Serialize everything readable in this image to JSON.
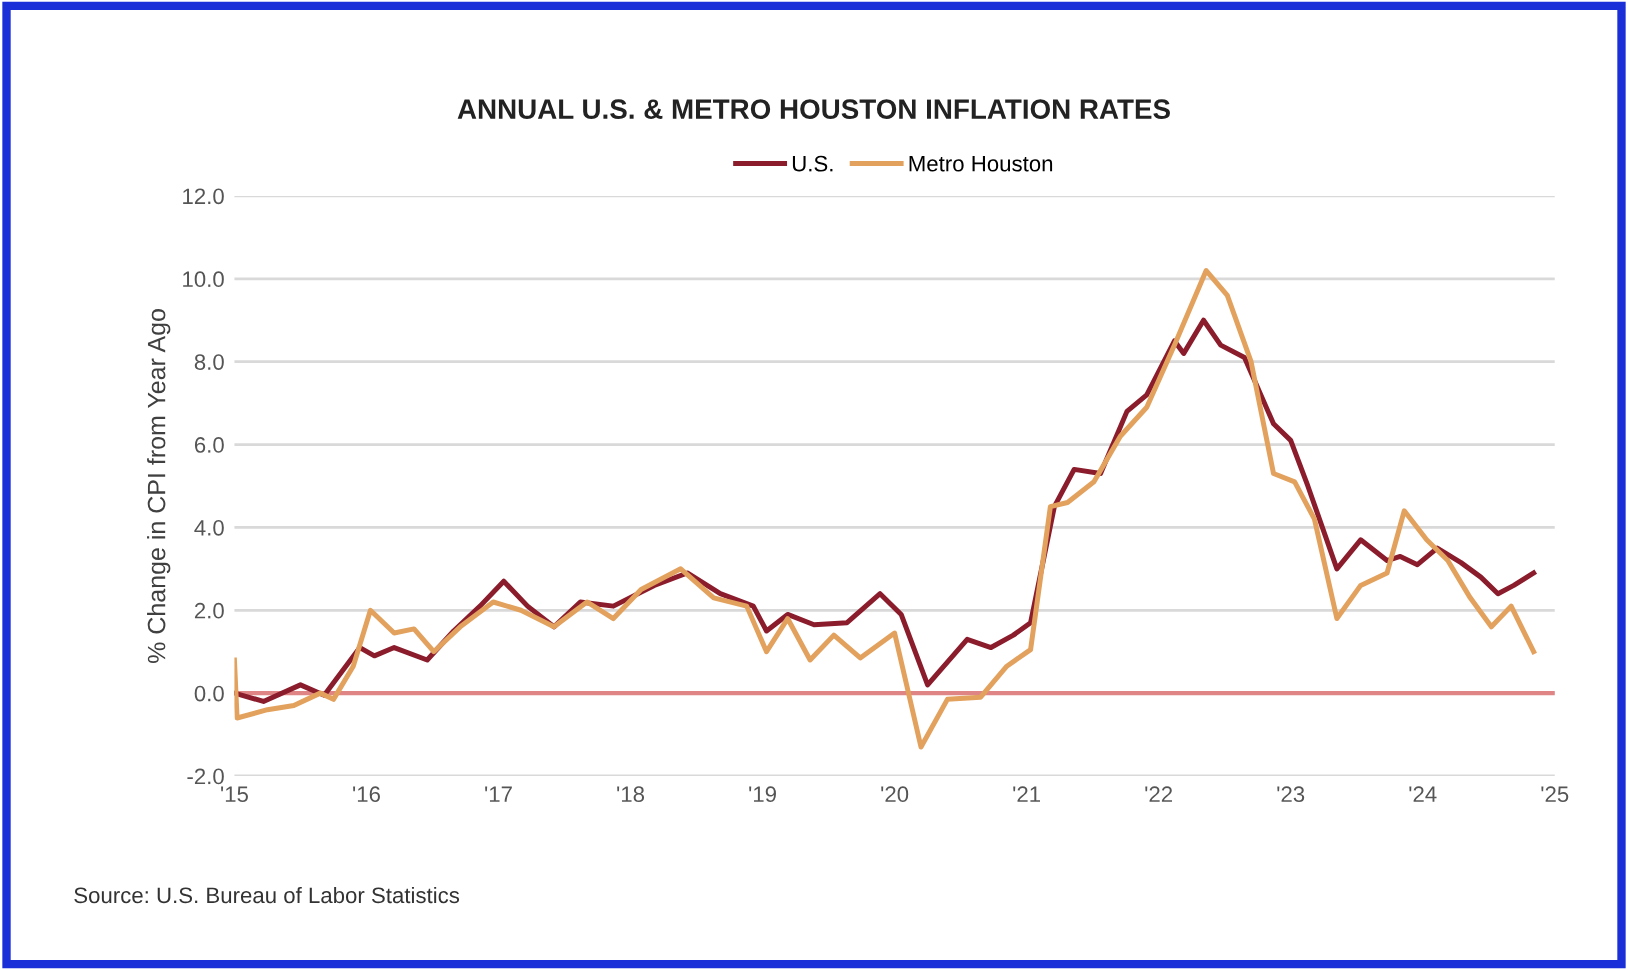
{
  "chart_data": {
    "type": "line",
    "title": "ANNUAL U.S. & METRO HOUSTON INFLATION RATES",
    "ylabel": "% Change in CPI from Year Ago",
    "annotations": [
      "Source: U.S. Bureau of Labor Statistics"
    ],
    "xlim": [
      2015,
      2025
    ],
    "xticks": [
      {
        "value": 2015,
        "label": "'15"
      },
      {
        "value": 2016,
        "label": "'16"
      },
      {
        "value": 2017,
        "label": "'17"
      },
      {
        "value": 2018,
        "label": "'18"
      },
      {
        "value": 2019,
        "label": "'19"
      },
      {
        "value": 2020,
        "label": "'20"
      },
      {
        "value": 2021,
        "label": "'21"
      },
      {
        "value": 2022,
        "label": "'22"
      },
      {
        "value": 2023,
        "label": "'23"
      },
      {
        "value": 2024,
        "label": "'24"
      },
      {
        "value": 2025,
        "label": "'25"
      }
    ],
    "ylim": [
      -2,
      12
    ],
    "yticks": [
      {
        "value": -2,
        "label": "-2.0"
      },
      {
        "value": 0,
        "label": "0.0"
      },
      {
        "value": 2,
        "label": "2.0"
      },
      {
        "value": 4,
        "label": "4.0"
      },
      {
        "value": 6,
        "label": "6.0"
      },
      {
        "value": 8,
        "label": "8.0"
      },
      {
        "value": 10,
        "label": "10.0"
      },
      {
        "value": 12,
        "label": "12.0"
      }
    ],
    "grid": "y",
    "legend": "top",
    "line_style": "solid",
    "marker": "none",
    "ref_lines": [
      {
        "axis": "y",
        "value": 0,
        "color": "#e08585"
      }
    ],
    "series": [
      {
        "name": "U.S.",
        "color": "#8b1c2c",
        "x": [
          2015.0,
          2015.22,
          2015.5,
          2015.68,
          2015.95,
          2016.06,
          2016.21,
          2016.46,
          2016.66,
          2016.86,
          2017.04,
          2017.22,
          2017.42,
          2017.62,
          2017.87,
          2018.18,
          2018.43,
          2018.68,
          2018.93,
          2019.03,
          2019.19,
          2019.39,
          2019.64,
          2019.89,
          2020.05,
          2020.25,
          2020.55,
          2020.73,
          2020.9,
          2021.03,
          2021.21,
          2021.36,
          2021.56,
          2021.76,
          2021.91,
          2022.12,
          2022.19,
          2022.34,
          2022.47,
          2022.65,
          2022.87,
          2023.0,
          2023.13,
          2023.35,
          2023.53,
          2023.73,
          2023.83,
          2023.96,
          2024.11,
          2024.29,
          2024.44,
          2024.57,
          2024.69,
          2024.84
        ],
        "values": [
          0.0,
          -0.2,
          0.2,
          -0.05,
          1.1,
          0.9,
          1.1,
          0.8,
          1.5,
          2.1,
          2.7,
          2.1,
          1.6,
          2.2,
          2.1,
          2.6,
          2.9,
          2.4,
          2.1,
          1.5,
          1.9,
          1.65,
          1.7,
          2.4,
          1.9,
          0.2,
          1.3,
          1.1,
          1.4,
          1.7,
          4.5,
          5.4,
          5.3,
          6.8,
          7.2,
          8.5,
          8.2,
          9.0,
          8.4,
          8.1,
          6.5,
          6.1,
          5.0,
          3.0,
          3.7,
          3.2,
          3.3,
          3.1,
          3.5,
          3.15,
          2.8,
          2.4,
          2.6,
          2.9
        ]
      },
      {
        "name": "Metro Houston",
        "color": "#e3a15e",
        "x": [
          2015.0,
          2015.02,
          2015.25,
          2015.45,
          2015.65,
          2015.75,
          2015.9,
          2016.03,
          2016.21,
          2016.36,
          2016.51,
          2016.71,
          2016.96,
          2017.17,
          2017.42,
          2017.67,
          2017.87,
          2018.08,
          2018.38,
          2018.63,
          2018.88,
          2019.03,
          2019.19,
          2019.36,
          2019.54,
          2019.74,
          2020.0,
          2020.2,
          2020.4,
          2020.65,
          2020.85,
          2021.03,
          2021.18,
          2021.31,
          2021.51,
          2021.71,
          2021.91,
          2022.12,
          2022.36,
          2022.52,
          2022.7,
          2022.87,
          2023.03,
          2023.18,
          2023.35,
          2023.53,
          2023.73,
          2023.86,
          2024.03,
          2024.19,
          2024.36,
          2024.52,
          2024.67,
          2024.84
        ],
        "values": [
          0.8,
          -0.6,
          -0.4,
          -0.3,
          0.0,
          -0.15,
          0.65,
          2.0,
          1.45,
          1.55,
          1.0,
          1.6,
          2.2,
          2.0,
          1.6,
          2.2,
          1.8,
          2.5,
          3.0,
          2.3,
          2.1,
          1.0,
          1.8,
          0.8,
          1.4,
          0.85,
          1.45,
          -1.3,
          -0.15,
          -0.1,
          0.65,
          1.05,
          4.5,
          4.6,
          5.1,
          6.2,
          6.9,
          8.4,
          10.2,
          9.6,
          8.0,
          5.3,
          5.1,
          4.2,
          1.8,
          2.6,
          2.9,
          4.4,
          3.7,
          3.2,
          2.3,
          1.6,
          2.1,
          1.0
        ]
      }
    ]
  }
}
